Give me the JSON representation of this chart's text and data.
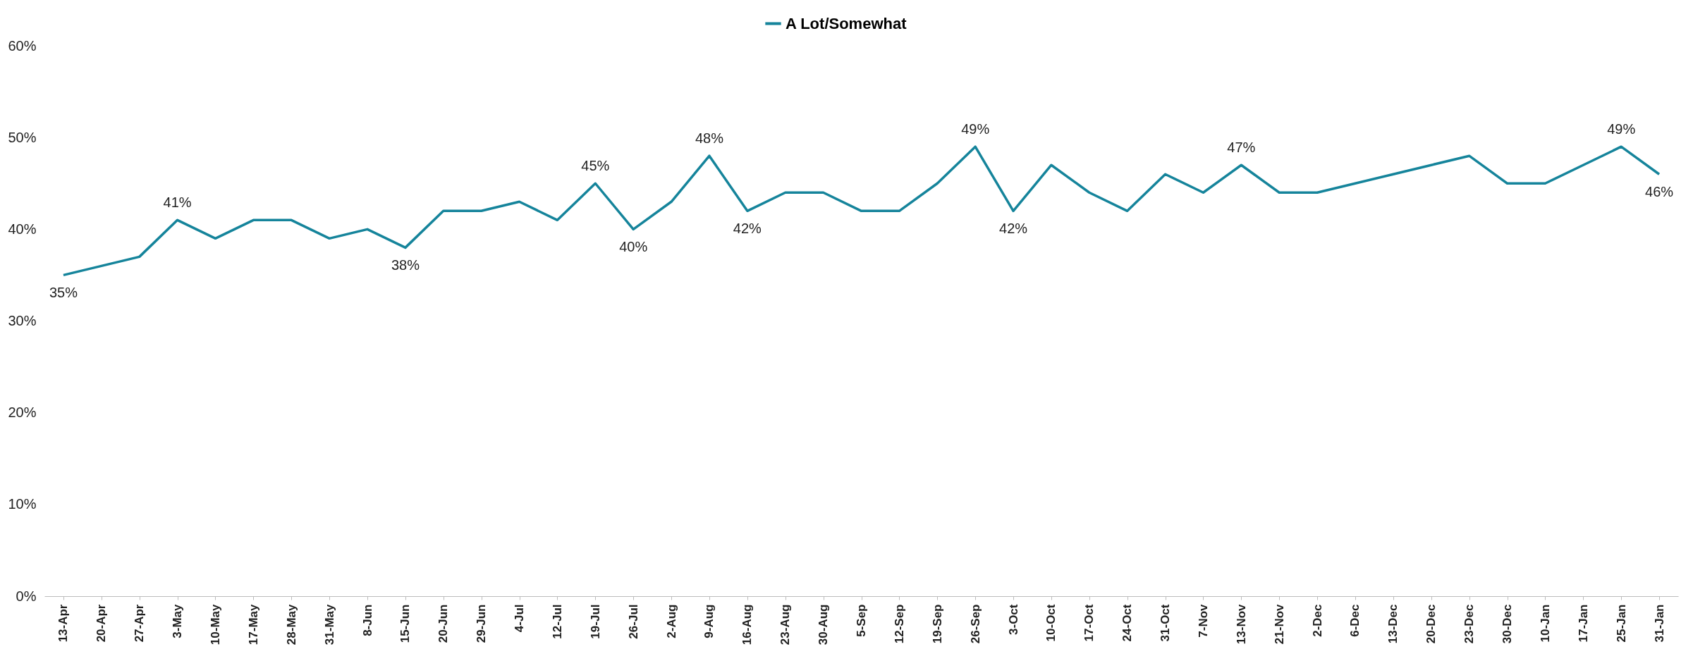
{
  "chart_data": {
    "type": "line",
    "legend": "top",
    "grid": false,
    "ylim": [
      0,
      60
    ],
    "yticks": [
      {
        "value": 0,
        "label": "0%"
      },
      {
        "value": 10,
        "label": "10%"
      },
      {
        "value": 20,
        "label": "20%"
      },
      {
        "value": 30,
        "label": "30%"
      },
      {
        "value": 40,
        "label": "40%"
      },
      {
        "value": 50,
        "label": "50%"
      },
      {
        "value": 60,
        "label": "60%"
      }
    ],
    "categories": [
      "13-Apr",
      "20-Apr",
      "27-Apr",
      "3-May",
      "10-May",
      "17-May",
      "28-May",
      "31-May",
      "8-Jun",
      "15-Jun",
      "20-Jun",
      "29-Jun",
      "4-Jul",
      "12-Jul",
      "19-Jul",
      "26-Jul",
      "2-Aug",
      "9-Aug",
      "16-Aug",
      "23-Aug",
      "30-Aug",
      "5-Sep",
      "12-Sep",
      "19-Sep",
      "26-Sep",
      "3-Oct",
      "10-Oct",
      "17-Oct",
      "24-Oct",
      "31-Oct",
      "7-Nov",
      "13-Nov",
      "21-Nov",
      "2-Dec",
      "6-Dec",
      "13-Dec",
      "20-Dec",
      "23-Dec",
      "30-Dec",
      "10-Jan",
      "17-Jan",
      "25-Jan",
      "31-Jan"
    ],
    "series": [
      {
        "name": "A Lot/Somewhat",
        "color": "#15849b",
        "values": [
          35,
          36,
          37,
          41,
          39,
          41,
          41,
          39,
          40,
          38,
          42,
          42,
          43,
          41,
          45,
          40,
          43,
          48,
          42,
          44,
          44,
          42,
          42,
          45,
          49,
          42,
          47,
          44,
          42,
          46,
          44,
          47,
          44,
          44,
          45,
          46,
          47,
          48,
          45,
          45,
          47,
          49,
          46
        ],
        "value_labels": [
          "35%",
          null,
          null,
          "41%",
          null,
          null,
          null,
          null,
          null,
          "38%",
          null,
          null,
          null,
          null,
          "45%",
          "40%",
          null,
          "48%",
          "42%",
          null,
          null,
          null,
          null,
          null,
          "49%",
          "42%",
          null,
          null,
          null,
          null,
          null,
          "47%",
          null,
          null,
          null,
          null,
          null,
          null,
          null,
          null,
          null,
          "49%",
          "46%"
        ]
      }
    ]
  }
}
